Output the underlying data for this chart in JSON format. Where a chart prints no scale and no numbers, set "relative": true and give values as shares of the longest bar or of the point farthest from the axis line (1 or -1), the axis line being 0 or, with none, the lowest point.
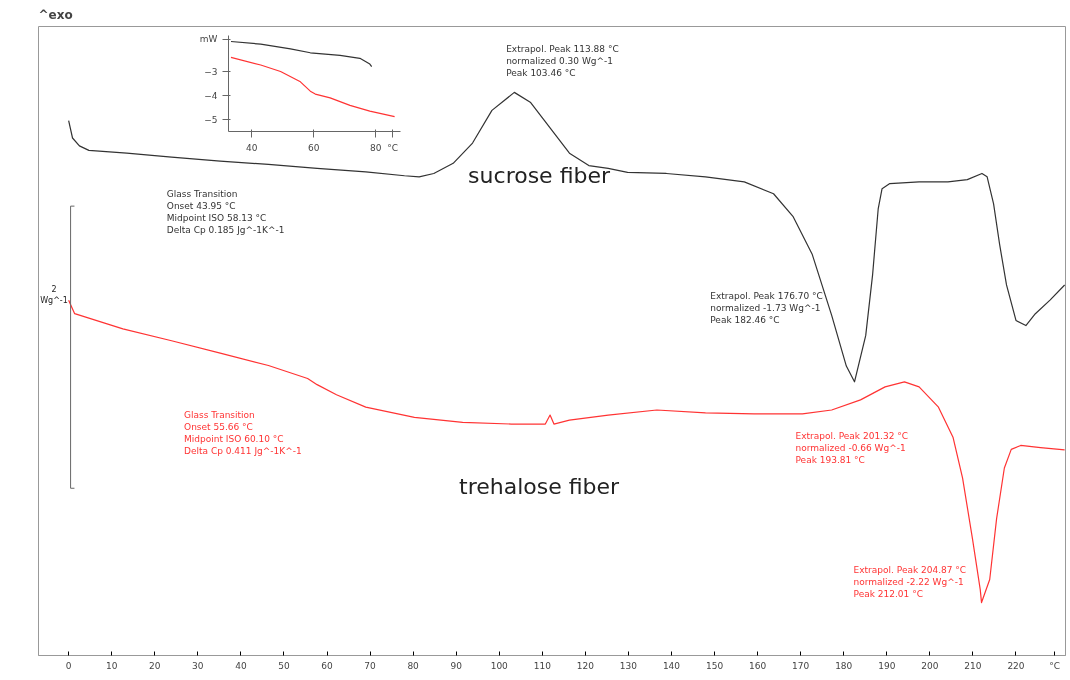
{
  "chart_data": [
    {
      "type": "line",
      "relative": true,
      "tick_labels": "x",
      "xlim": [
        -7,
        231.5
      ],
      "xticks": [
        0,
        10,
        20,
        30,
        40,
        50,
        60,
        70,
        80,
        90,
        100,
        110,
        120,
        130,
        140,
        150,
        160,
        170,
        180,
        190,
        200,
        210,
        220,
        {
          "value": 229,
          "label": "°C"
        }
      ],
      "series": [
        {
          "name": "sucrose fiber",
          "color": "#333333",
          "x": [
            0,
            0.9,
            2.5,
            4.7,
            13.5,
            23.9,
            35.2,
            46.4,
            57.7,
            69.0,
            78.0,
            81.4,
            84.8,
            89.3,
            93.8,
            98.3,
            103.5,
            107.3,
            111.8,
            116.3,
            120.8,
            125.3,
            129.8,
            138.8,
            147.9,
            156.9,
            163.7,
            168.2,
            172.7,
            177.2,
            180.6,
            182.5,
            185.1,
            186.7,
            188.0,
            188.9,
            190.7,
            197.5,
            204.2,
            208.7,
            212.1,
            213.3,
            214.8,
            216.2,
            217.8,
            220.0,
            222.3,
            224.5,
            227.9,
            231.3
          ],
          "values": [
            0.95,
            0.919,
            0.905,
            0.897,
            0.892,
            0.885,
            0.878,
            0.872,
            0.865,
            0.859,
            0.852,
            0.85,
            0.856,
            0.874,
            0.91,
            0.968,
            1.0,
            0.982,
            0.937,
            0.892,
            0.87,
            0.865,
            0.858,
            0.856,
            0.85,
            0.841,
            0.82,
            0.78,
            0.712,
            0.604,
            0.514,
            0.486,
            0.568,
            0.676,
            0.793,
            0.829,
            0.838,
            0.841,
            0.841,
            0.845,
            0.856,
            0.85,
            0.802,
            0.73,
            0.658,
            0.595,
            0.586,
            0.607,
            0.631,
            0.658
          ]
        },
        {
          "name": "trehalose fiber",
          "color": "#ff3333",
          "x": [
            0,
            1.4,
            12.6,
            23.9,
            35.2,
            46.4,
            55.5,
            57.7,
            62.2,
            69.0,
            80.3,
            91.5,
            102.8,
            110.7,
            111.8,
            112.7,
            116.3,
            125.3,
            136.6,
            147.9,
            159.2,
            170.4,
            177.2,
            183.9,
            189.6,
            194.1,
            197.5,
            202.0,
            205.4,
            207.6,
            209.9,
            211.7,
            212.0,
            213.9,
            215.5,
            217.3,
            218.9,
            221.1,
            225.7,
            231.3
          ],
          "values": [
            0.631,
            0.607,
            0.58,
            0.559,
            0.537,
            0.515,
            0.492,
            0.481,
            0.463,
            0.441,
            0.423,
            0.414,
            0.411,
            0.411,
            0.427,
            0.411,
            0.418,
            0.427,
            0.436,
            0.431,
            0.429,
            0.429,
            0.436,
            0.454,
            0.477,
            0.486,
            0.477,
            0.441,
            0.387,
            0.315,
            0.207,
            0.117,
            0.094,
            0.135,
            0.243,
            0.333,
            0.366,
            0.373,
            0.369,
            0.365
          ]
        }
      ],
      "annotations": [
        "^exo",
        "2\nWg^-1",
        "Glass Transition\nOnset          43.95 °C\nMidpoint ISO  58.13 °C\nDelta Cp       0.185 Jg^-1K^-1",
        {
          "text": "Extrapol. Peak  113.88 °C\n  normalized     0.30 Wg^-1\nPeak               103.46 °C",
          "x": 103.46,
          "y": 1.0
        },
        "Extrapol. Peak  176.70 °C\n  normalized     -1.73 Wg^-1\nPeak               182.46 °C",
        "Glass Transition\nOnset          55.66 °C\nMidpoint ISO  60.10 °C\nDelta Cp       0.411 Jg^-1K^-1",
        "Extrapol. Peak  201.32 °C\n  normalized     -0.66 Wg^-1\nPeak               193.81 °C",
        {
          "text": "Extrapol. Peak  204.87 °C\n  normalized     -2.22 Wg^-1\nPeak               212.01 °C",
          "x": 212.01,
          "y": 0.094
        }
      ]
    },
    {
      "type": "line",
      "xlim": [
        32.5,
        88
      ],
      "xticks": [
        40,
        60,
        80,
        {
          "value": 85.5,
          "label": "°C"
        }
      ],
      "ylim": [
        -5.5,
        -1.5
      ],
      "yticks": [
        -3,
        -4,
        -5,
        {
          "value": -1.65,
          "label": "mW"
        }
      ],
      "series": [
        {
          "color": "#333333",
          "x": [
            33.3,
            42.9,
            52.5,
            58.9,
            68.5,
            74.9,
            78.1,
            78.7
          ],
          "values": [
            -1.75,
            -1.86,
            -2.06,
            -2.22,
            -2.33,
            -2.45,
            -2.69,
            -2.8
          ]
        },
        {
          "color": "#ff3333",
          "x": [
            33.3,
            42.9,
            49.3,
            55.7,
            58.9,
            60.5,
            65.3,
            71.7,
            78.1,
            86.1
          ],
          "values": [
            -2.41,
            -2.73,
            -3.0,
            -3.43,
            -3.82,
            -3.94,
            -4.1,
            -4.41,
            -4.65,
            -4.88
          ]
        }
      ]
    }
  ]
}
